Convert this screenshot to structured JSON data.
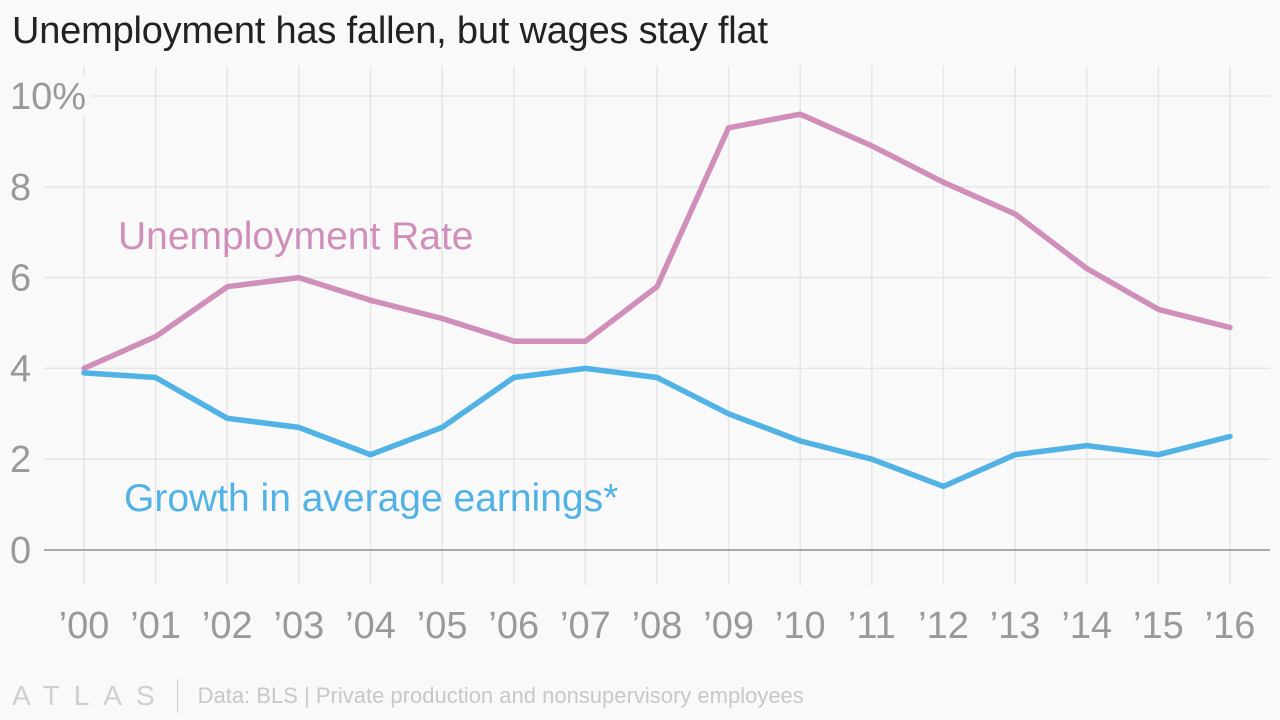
{
  "title": "Unemployment has fallen, but wages stay flat",
  "chart_data": {
    "type": "line",
    "title": "Unemployment has fallen, but wages stay flat",
    "categories": [
      "’00",
      "’01",
      "’02",
      "’03",
      "’04",
      "’05",
      "’06",
      "’07",
      "’08",
      "’09",
      "’10",
      "’11",
      "’12",
      "’13",
      "’14",
      "’15",
      "’16"
    ],
    "ylim": [
      0,
      10
    ],
    "yticks": [
      0,
      2,
      4,
      6,
      8,
      10
    ],
    "ytick_labels": [
      "0",
      "2",
      "4",
      "6",
      "8",
      "10%"
    ],
    "grid": true,
    "xlabel": "",
    "ylabel": "",
    "series": [
      {
        "name": "Unemployment Rate",
        "color": "#d08fba",
        "values": [
          4.0,
          4.7,
          5.8,
          6.0,
          5.5,
          5.1,
          4.6,
          4.6,
          5.8,
          9.3,
          9.6,
          8.9,
          8.1,
          7.4,
          6.2,
          5.3,
          4.9
        ]
      },
      {
        "name": "Growth in average earnings*",
        "color": "#51b2e5",
        "values": [
          3.9,
          3.8,
          2.9,
          2.7,
          2.1,
          2.7,
          3.8,
          4.0,
          3.8,
          3.0,
          2.4,
          2.0,
          1.4,
          2.1,
          2.3,
          2.1,
          2.5
        ]
      }
    ]
  },
  "footer": {
    "brand": "ATLAS",
    "source": "Data: BLS | Private production and nonsupervisory employees"
  },
  "colors": {
    "background": "#f9f9f9",
    "grid": "#e6e6e6",
    "axis": "#aaaaaa",
    "tick_label": "#999999"
  }
}
